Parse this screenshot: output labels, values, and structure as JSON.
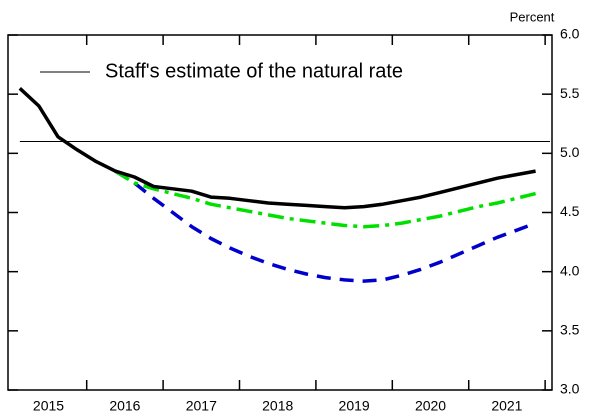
{
  "chart_data": {
    "type": "line",
    "y_axis_label": "Percent",
    "x": [
      2015.125,
      2015.375,
      2015.625,
      2015.875,
      2016.125,
      2016.375,
      2016.625,
      2016.875,
      2017.125,
      2017.375,
      2017.625,
      2017.875,
      2018.125,
      2018.375,
      2018.625,
      2018.875,
      2019.125,
      2019.375,
      2019.625,
      2019.875,
      2020.125,
      2020.375,
      2020.625,
      2020.875,
      2021.125,
      2021.375,
      2021.625,
      2021.875
    ],
    "series": [
      {
        "color": "#000000",
        "style": "solid",
        "values": [
          5.55,
          5.4,
          5.14,
          5.03,
          4.93,
          4.85,
          4.8,
          4.72,
          4.7,
          4.68,
          4.63,
          4.62,
          4.6,
          4.58,
          4.57,
          4.56,
          4.55,
          4.54,
          4.55,
          4.57,
          4.6,
          4.63,
          4.67,
          4.71,
          4.75,
          4.79,
          4.82,
          4.85
        ]
      },
      {
        "color": "#00e000",
        "style": "dashdot",
        "values": [
          null,
          null,
          null,
          null,
          null,
          4.85,
          4.75,
          4.7,
          4.66,
          4.62,
          4.57,
          4.54,
          4.51,
          4.48,
          4.45,
          4.43,
          4.41,
          4.39,
          4.38,
          4.39,
          4.41,
          4.44,
          4.47,
          4.51,
          4.55,
          4.58,
          4.62,
          4.66
        ]
      },
      {
        "color": "#0000cc",
        "style": "dashed",
        "values": [
          null,
          null,
          null,
          null,
          null,
          4.85,
          4.75,
          4.62,
          4.5,
          4.38,
          4.28,
          4.2,
          4.13,
          4.07,
          4.02,
          3.98,
          3.95,
          3.93,
          3.92,
          3.93,
          3.97,
          4.02,
          4.08,
          4.15,
          4.22,
          4.29,
          4.35,
          4.41
        ]
      }
    ],
    "reference_line": {
      "name": "Staff's estimate of the natural rate",
      "value": 5.1,
      "color": "#000000"
    },
    "xlim": [
      2014.97,
      2022.09
    ],
    "xticks": [
      {
        "value": 2015.5,
        "label": "2015"
      },
      {
        "value": 2016.5,
        "label": "2016"
      },
      {
        "value": 2017.5,
        "label": "2017"
      },
      {
        "value": 2018.5,
        "label": "2018"
      },
      {
        "value": 2019.5,
        "label": "2019"
      },
      {
        "value": 2020.5,
        "label": "2020"
      },
      {
        "value": 2021.5,
        "label": "2021"
      }
    ],
    "ylim": [
      3,
      6
    ],
    "yticks": [
      {
        "value": 3,
        "label": "3.0"
      },
      {
        "value": 3.5,
        "label": "3.5"
      },
      {
        "value": 4,
        "label": "4.0"
      },
      {
        "value": 4.5,
        "label": "4.5"
      },
      {
        "value": 5,
        "label": "5.0"
      },
      {
        "value": 5.5,
        "label": "5.5"
      },
      {
        "value": 6,
        "label": "6.0"
      }
    ],
    "y_axis_side": "right"
  }
}
